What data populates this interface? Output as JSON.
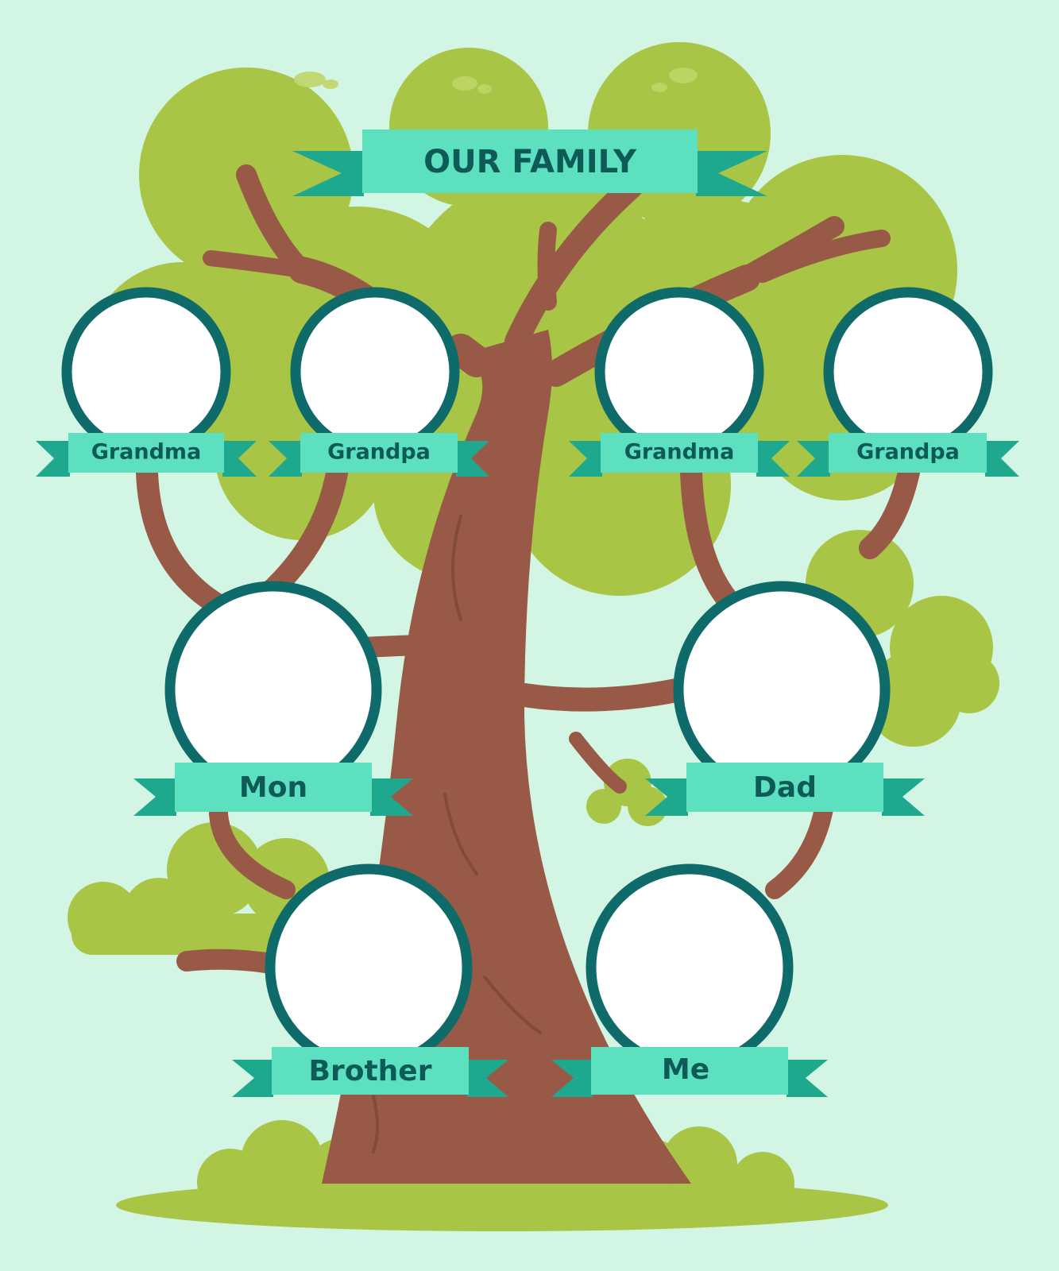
{
  "title": "OUR FAMILY",
  "members": {
    "grandma_left": "Grandma",
    "grandpa_left": "Grandpa",
    "grandma_right": "Grandma",
    "grandpa_right": "Grandpa",
    "mom": "Mon",
    "dad": "Dad",
    "brother": "Brother",
    "me": "Me"
  },
  "colors": {
    "background": "#d3f5e4",
    "foliage": "#a8c545",
    "foliage_dark": "#8fb23a",
    "foliage_light": "#bed668",
    "trunk": "#985a47",
    "trunk_dark": "#7d4636",
    "frame": "#0f6a6a",
    "ribbon": "#5de0bf",
    "ribbon_dark": "#1ea98e",
    "label_text": "#0e5a57"
  }
}
